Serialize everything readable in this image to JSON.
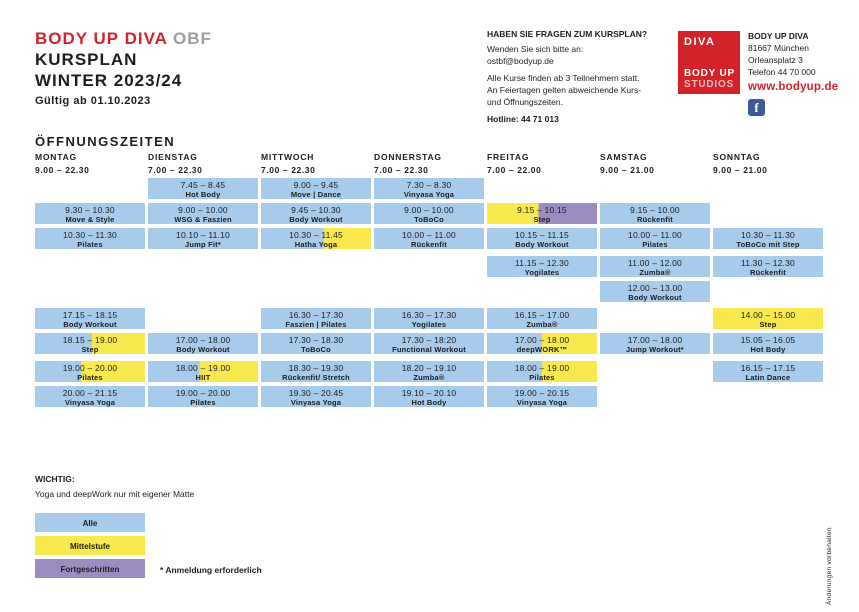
{
  "colors": {
    "accent_red": "#d2232a",
    "gray": "#9b9da0",
    "level_alle": "#a7cbeb",
    "level_mittelstufe": "#f9e94f",
    "level_fortgeschritten": "#9b8dc0",
    "facebook_blue": "#3a5a98"
  },
  "brand": {
    "title_red": "BODY UP DIVA",
    "title_gray": "OBF",
    "line2": "KURSPLAN",
    "line3": "WINTER 2023/24",
    "valid_from": "Gültig ab 01.10.2023"
  },
  "questions": {
    "heading": "HABEN SIE FRAGEN ZUM KURSPLAN?",
    "contact_line": "Wenden Sie sich bitte an:",
    "email": "ostbf@bodyup.de",
    "info1": "Alle Kurse finden ab 3 Teilnehmern statt.",
    "info2": "An Feiertagen gelten abweichende Kurs-",
    "info3": "und Öffnungszeiten.",
    "hotline": "Hotline: 44 71 013"
  },
  "logo": {
    "top": "DIVA",
    "bottom1": "BODY UP",
    "bottom2": "STUDIOS"
  },
  "contact": {
    "name": "BODY UP DIVA",
    "zip_city": "81667 München",
    "street": "Orleansplatz 3",
    "phone": "Telefon 44 70 000",
    "website": "www.bodyup.de",
    "facebook": "f"
  },
  "schedule": {
    "heading": "ÖFFNUNGSZEITEN",
    "days": [
      {
        "name": "MONTAG",
        "hours": "9.00 – 22.30"
      },
      {
        "name": "DIENSTAG",
        "hours": "7.00 – 22.30"
      },
      {
        "name": "MITTWOCH",
        "hours": "7.00 – 22.30"
      },
      {
        "name": "DONNERSTAG",
        "hours": "7.00 – 22.30"
      },
      {
        "name": "FREITAG",
        "hours": "7.00 – 22.00"
      },
      {
        "name": "SAMSTAG",
        "hours": "9.00 – 21.00"
      },
      {
        "name": "SONNTAG",
        "hours": "9.00 – 21.00"
      }
    ],
    "cells": [
      {
        "day": 0,
        "row": 2,
        "time": "9.30 – 10.30",
        "course": "Move & Style",
        "level": "alle"
      },
      {
        "day": 0,
        "row": 3,
        "time": "10.30 – 11.30",
        "course": "Pilates",
        "level": "alle"
      },
      {
        "day": 0,
        "row": 6,
        "time": "17.15 – 18.15",
        "course": "Body Workout",
        "level": "alle"
      },
      {
        "day": 0,
        "row": 7,
        "time": "18.15 – 19.00",
        "course": "Step",
        "level": "alle-mittelstufe",
        "split": 52
      },
      {
        "day": 0,
        "row": 8,
        "time": "19.00 – 20.00",
        "course": "Pilates",
        "level": "alle-mittelstufe",
        "split": 42
      },
      {
        "day": 0,
        "row": 9,
        "time": "20.00 – 21.15",
        "course": "Vinyasa Yoga",
        "level": "alle"
      },
      {
        "day": 1,
        "row": 1,
        "time": "7.45 – 8.45",
        "course": "Hot Body",
        "level": "alle"
      },
      {
        "day": 1,
        "row": 2,
        "time": "9.00 – 10.00",
        "course": "WSG & Faszien",
        "level": "alle"
      },
      {
        "day": 1,
        "row": 3,
        "time": "10.10 – 11.10",
        "course": "Jump Fit*",
        "level": "alle"
      },
      {
        "day": 1,
        "row": 7,
        "time": "17.00 – 18.00",
        "course": "Body Workout",
        "level": "alle"
      },
      {
        "day": 1,
        "row": 8,
        "time": "18.00 – 19.00",
        "course": "HIIT",
        "level": "alle-mittelstufe",
        "split": 47
      },
      {
        "day": 1,
        "row": 9,
        "time": "19.00 – 20.00",
        "course": "Pilates",
        "level": "alle"
      },
      {
        "day": 2,
        "row": 1,
        "time": "9.00 – 9.45",
        "course": "Move | Dance",
        "level": "alle"
      },
      {
        "day": 2,
        "row": 2,
        "time": "9.45 – 10.30",
        "course": "Body Workout",
        "level": "alle"
      },
      {
        "day": 2,
        "row": 3,
        "time": "10.30 – 11.45",
        "course": "Hatha Yoga",
        "level": "alle-mittelstufe",
        "split": 57
      },
      {
        "day": 2,
        "row": 6,
        "time": "16.30 – 17.30",
        "course": "Faszien | Pilates",
        "level": "alle"
      },
      {
        "day": 2,
        "row": 7,
        "time": "17.30 – 18.30",
        "course": "ToBoCo",
        "level": "alle"
      },
      {
        "day": 2,
        "row": 8,
        "time": "18.30 – 19.30",
        "course": "Rückenfit/ Stretch",
        "level": "alle"
      },
      {
        "day": 2,
        "row": 9,
        "time": "19.30 – 20.45",
        "course": "Vinyasa Yoga",
        "level": "alle"
      },
      {
        "day": 3,
        "row": 1,
        "time": "7.30 – 8.30",
        "course": "Vinyasa Yoga",
        "level": "alle"
      },
      {
        "day": 3,
        "row": 2,
        "time": "9.00 – 10.00",
        "course": "ToBoCo",
        "level": "alle"
      },
      {
        "day": 3,
        "row": 3,
        "time": "10.00 – 11.00",
        "course": "Rückenfit",
        "level": "alle"
      },
      {
        "day": 3,
        "row": 6,
        "time": "16.30 – 17.30",
        "course": "Yogilates",
        "level": "alle"
      },
      {
        "day": 3,
        "row": 7,
        "time": "17.30 – 18:20",
        "course": "Functional Workout",
        "level": "alle"
      },
      {
        "day": 3,
        "row": 8,
        "time": "18.20 – 19.10",
        "course": "Zumba®",
        "level": "alle"
      },
      {
        "day": 3,
        "row": 9,
        "time": "19.10 – 20.10",
        "course": "Hot Body",
        "level": "alle"
      },
      {
        "day": 4,
        "row": 2,
        "time": "9.15 – 10.15",
        "course": "Step",
        "level": "mittelstufe-fortgeschritten",
        "split": 47
      },
      {
        "day": 4,
        "row": 3,
        "time": "10.15 – 11.15",
        "course": "Body Workout",
        "level": "alle"
      },
      {
        "day": 4,
        "row": 4,
        "time": "11.15 – 12.30",
        "course": "Yogilates",
        "level": "alle"
      },
      {
        "day": 4,
        "row": 6,
        "time": "16.15 – 17.00",
        "course": "Zumba®",
        "level": "alle"
      },
      {
        "day": 4,
        "row": 7,
        "time": "17.00 – 18.00",
        "course": "deepWORK™",
        "level": "alle-mittelstufe",
        "split": 50
      },
      {
        "day": 4,
        "row": 8,
        "time": "18.00 – 19.00",
        "course": "Pilates",
        "level": "alle-mittelstufe",
        "split": 50
      },
      {
        "day": 4,
        "row": 9,
        "time": "19.00 – 20.15",
        "course": "Vinyasa Yoga",
        "level": "alle"
      },
      {
        "day": 5,
        "row": 2,
        "time": "9.15 – 10.00",
        "course": "Rückenfit",
        "level": "alle"
      },
      {
        "day": 5,
        "row": 3,
        "time": "10.00 – 11.00",
        "course": "Pilates",
        "level": "alle"
      },
      {
        "day": 5,
        "row": 4,
        "time": "11.00 – 12.00",
        "course": "Zumba®",
        "level": "alle"
      },
      {
        "day": 5,
        "row": 5,
        "time": "12.00 – 13.00",
        "course": "Body Workout",
        "level": "alle"
      },
      {
        "day": 5,
        "row": 7,
        "time": "17.00 – 18.00",
        "course": "Jump Workout*",
        "level": "alle"
      },
      {
        "day": 6,
        "row": 3,
        "time": "10.30 – 11.30",
        "course": "ToBoCo mit Step",
        "level": "alle"
      },
      {
        "day": 6,
        "row": 4,
        "time": "11.30 – 12.30",
        "course": "Rückenfit",
        "level": "alle"
      },
      {
        "day": 6,
        "row": 6,
        "time": "14.00 – 15.00",
        "course": "Step",
        "level": "mittelstufe"
      },
      {
        "day": 6,
        "row": 7,
        "time": "15.05 – 16.05",
        "course": "Hot Body",
        "level": "alle"
      },
      {
        "day": 6,
        "row": 8,
        "time": "16.15 – 17.15",
        "course": "Latin Dance",
        "level": "alle"
      }
    ]
  },
  "legend": {
    "wichtig": "WICHTIG:",
    "note": "Yoga und deepWork nur mit eigener Matte",
    "items": [
      {
        "label": "Alle",
        "level": "alle"
      },
      {
        "label": "Mittelstufe",
        "level": "mittelstufe"
      },
      {
        "label": "Fortgeschritten",
        "level": "fortgeschritten"
      }
    ],
    "footnote": "* Anmeldung erforderlich"
  },
  "vertical_note": "Änderungen vorbehalten"
}
